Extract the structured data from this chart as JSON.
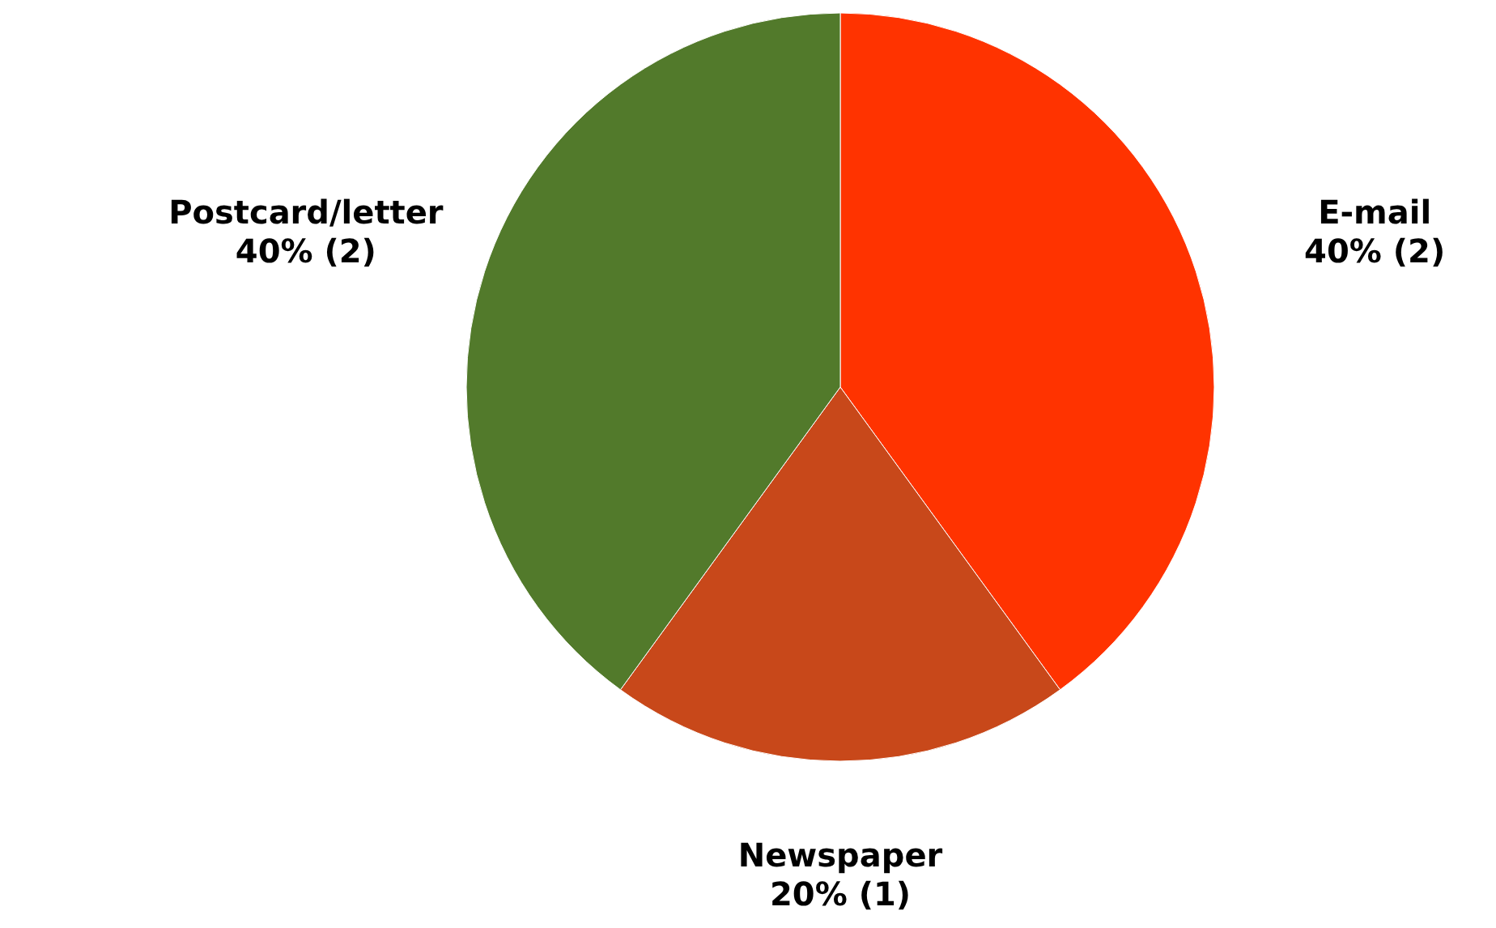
{
  "chart_data": {
    "type": "pie",
    "categories": [
      "E-mail",
      "Newspaper",
      "Postcard/letter"
    ],
    "values": [
      2,
      1,
      2
    ],
    "value_labels": [
      "40% (2)",
      "20% (1)",
      "40% (2)"
    ],
    "colors": [
      "#ff3300",
      "#c8481a",
      "#527a2b"
    ]
  }
}
